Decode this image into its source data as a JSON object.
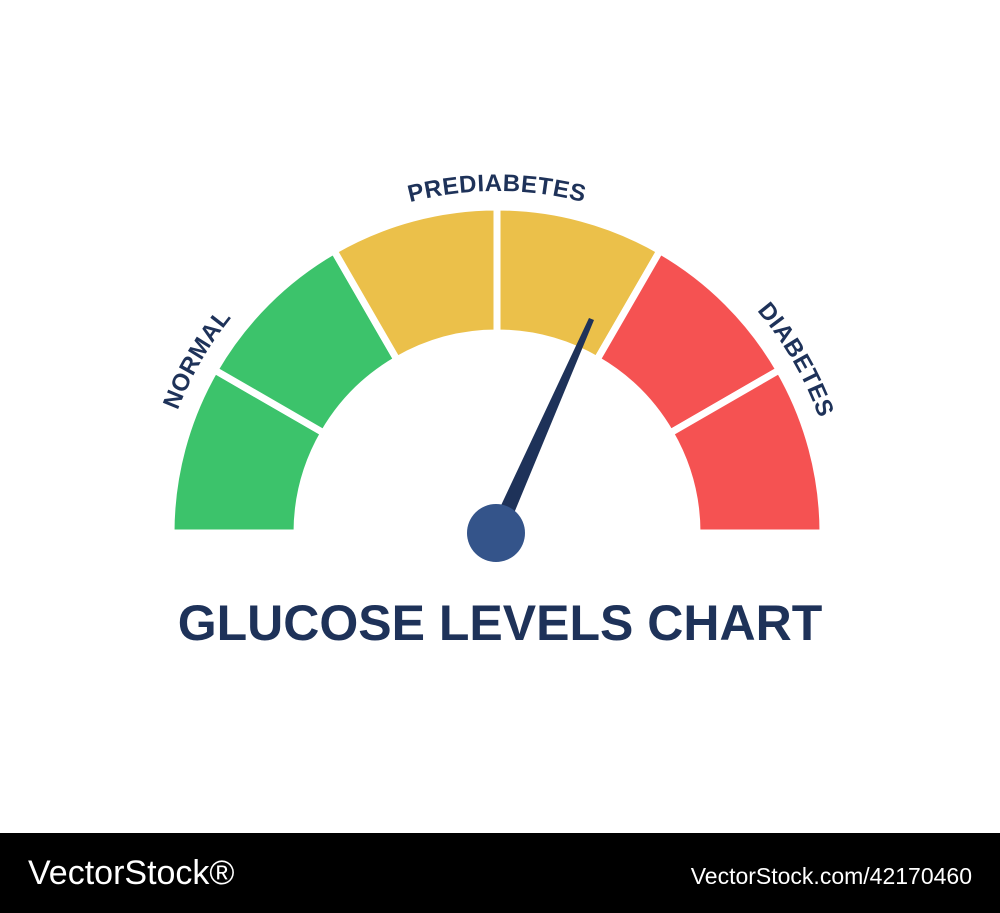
{
  "title": "GLUCOSE LEVELS CHART",
  "zones": [
    {
      "label": "NORMAL"
    },
    {
      "label": "PREDIABETES"
    },
    {
      "label": "DIABETES"
    }
  ],
  "footer": {
    "brand": "VectorStock®",
    "id": "VectorStock.com/42170460"
  }
}
